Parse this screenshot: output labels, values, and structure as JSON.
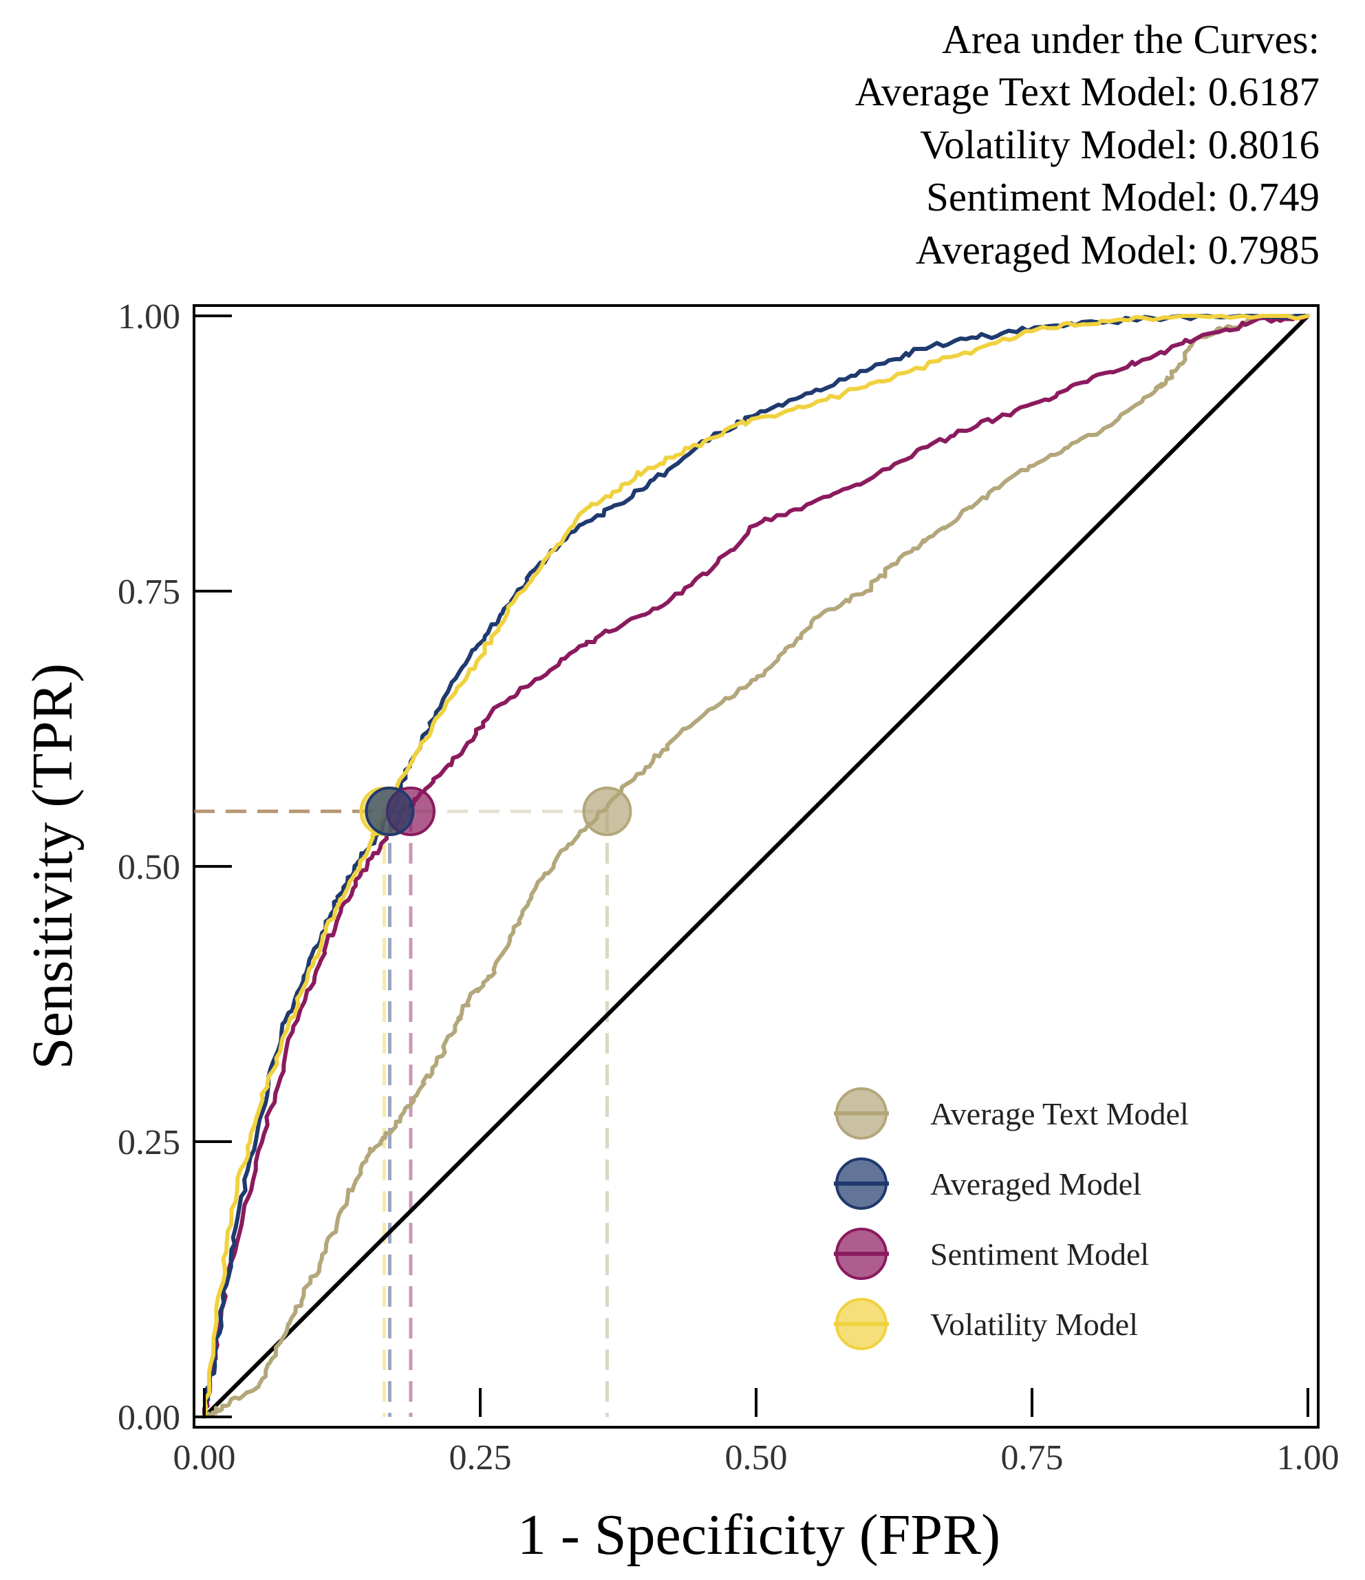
{
  "chart_data": {
    "type": "line",
    "title": "",
    "xlabel": "1 - Specificity (FPR)",
    "ylabel": "Sensitivity (TPR)",
    "xlim": [
      0,
      1
    ],
    "ylim": [
      0,
      1
    ],
    "xticks": [
      "0.00",
      "0.25",
      "0.50",
      "0.75",
      "1.00"
    ],
    "yticks": [
      "0.00",
      "0.25",
      "0.50",
      "0.75",
      "1.00"
    ],
    "grid": false,
    "legend_position": "bottom-right",
    "auc_annotation": {
      "heading": "Area under the Curves:",
      "lines": [
        "Average Text Model: 0.6187",
        "Volatility Model: 0.8016",
        "Sentiment Model: 0.749",
        "Averaged Model: 0.7985"
      ]
    },
    "reference_line": {
      "name": "chance",
      "x": [
        0,
        1
      ],
      "y": [
        0,
        1
      ],
      "color": "#000000"
    },
    "threshold_tpr": 0.55,
    "series": [
      {
        "name": "Average Text Model",
        "color": "#B3A77B",
        "auc": 0.6187,
        "threshold_point": {
          "x": 0.365,
          "y": 0.55
        },
        "x": [
          0.0,
          0.02,
          0.05,
          0.07,
          0.09,
          0.11,
          0.13,
          0.15,
          0.17,
          0.19,
          0.21,
          0.23,
          0.24,
          0.26,
          0.28,
          0.3,
          0.33,
          0.36,
          0.4,
          0.43,
          0.47,
          0.5,
          0.53,
          0.56,
          0.6,
          0.63,
          0.66,
          0.7,
          0.74,
          0.78,
          0.82,
          0.86,
          0.88,
          0.9,
          0.93,
          0.96,
          1.0
        ],
        "y": [
          0.0,
          0.01,
          0.03,
          0.07,
          0.11,
          0.15,
          0.2,
          0.24,
          0.26,
          0.29,
          0.32,
          0.36,
          0.38,
          0.4,
          0.44,
          0.48,
          0.52,
          0.55,
          0.59,
          0.62,
          0.65,
          0.67,
          0.7,
          0.73,
          0.75,
          0.78,
          0.8,
          0.83,
          0.86,
          0.88,
          0.9,
          0.93,
          0.95,
          0.98,
          0.99,
          1.0,
          1.0
        ]
      },
      {
        "name": "Averaged Model",
        "color": "#1F3A6E",
        "auc": 0.7985,
        "threshold_point": {
          "x": 0.168,
          "y": 0.55
        },
        "x": [
          0.0,
          0.01,
          0.02,
          0.03,
          0.05,
          0.07,
          0.09,
          0.11,
          0.13,
          0.15,
          0.17,
          0.19,
          0.21,
          0.24,
          0.27,
          0.3,
          0.34,
          0.38,
          0.42,
          0.46,
          0.5,
          0.55,
          0.6,
          0.65,
          0.7,
          0.76,
          0.82,
          0.9,
          1.0
        ],
        "y": [
          0.0,
          0.06,
          0.12,
          0.18,
          0.27,
          0.35,
          0.4,
          0.45,
          0.49,
          0.52,
          0.55,
          0.6,
          0.64,
          0.69,
          0.73,
          0.77,
          0.81,
          0.83,
          0.86,
          0.89,
          0.91,
          0.93,
          0.95,
          0.97,
          0.98,
          0.99,
          0.995,
          1.0,
          1.0
        ]
      },
      {
        "name": "Sentiment Model",
        "color": "#8B1A5E",
        "auc": 0.749,
        "threshold_point": {
          "x": 0.187,
          "y": 0.55
        },
        "x": [
          0.0,
          0.01,
          0.02,
          0.04,
          0.06,
          0.08,
          0.1,
          0.12,
          0.14,
          0.16,
          0.18,
          0.2,
          0.23,
          0.26,
          0.3,
          0.34,
          0.38,
          0.42,
          0.46,
          0.5,
          0.55,
          0.6,
          0.65,
          0.7,
          0.75,
          0.8,
          0.85,
          0.9,
          0.95,
          1.0
        ],
        "y": [
          0.0,
          0.06,
          0.12,
          0.2,
          0.28,
          0.35,
          0.4,
          0.45,
          0.49,
          0.52,
          0.55,
          0.57,
          0.6,
          0.64,
          0.67,
          0.7,
          0.72,
          0.74,
          0.77,
          0.81,
          0.83,
          0.85,
          0.88,
          0.9,
          0.92,
          0.94,
          0.96,
          0.98,
          0.995,
          1.0
        ]
      },
      {
        "name": "Volatility Model",
        "color": "#F0D240",
        "auc": 0.8016,
        "threshold_point": {
          "x": 0.163,
          "y": 0.55
        },
        "x": [
          0.0,
          0.01,
          0.02,
          0.03,
          0.05,
          0.07,
          0.09,
          0.11,
          0.13,
          0.15,
          0.17,
          0.19,
          0.22,
          0.25,
          0.28,
          0.31,
          0.34,
          0.37,
          0.4,
          0.44,
          0.48,
          0.52,
          0.58,
          0.64,
          0.7,
          0.76,
          0.82,
          0.9,
          1.0
        ],
        "y": [
          0.0,
          0.08,
          0.15,
          0.21,
          0.28,
          0.34,
          0.39,
          0.44,
          0.48,
          0.52,
          0.56,
          0.6,
          0.65,
          0.69,
          0.74,
          0.78,
          0.82,
          0.84,
          0.86,
          0.88,
          0.9,
          0.91,
          0.93,
          0.95,
          0.97,
          0.99,
          0.995,
          1.0,
          1.0
        ]
      }
    ]
  }
}
